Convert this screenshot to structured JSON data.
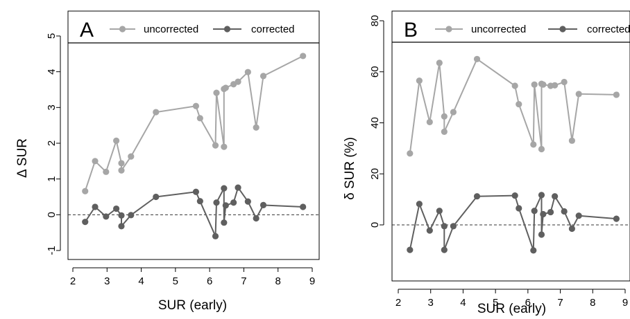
{
  "colors": {
    "uncorrected": "#a6a6a6",
    "corrected": "#5f5f5f",
    "axis": "#000000",
    "zero_line": "#333333"
  },
  "chart_data": [
    {
      "type": "line",
      "panel_label": "A",
      "xlabel": "SUR (early)",
      "ylabel": "Δ SUR",
      "xlim": [
        2,
        9
      ],
      "ylim": [
        -1,
        5
      ],
      "x_ticks": [
        2,
        3,
        4,
        5,
        6,
        7,
        8,
        9
      ],
      "y_ticks": [
        -1,
        0,
        1,
        2,
        3,
        4,
        5
      ],
      "zero_line": 0,
      "legend_position": "top",
      "series": [
        {
          "name": "uncorrected",
          "color": "#a6a6a6",
          "points": [
            [
              2.36,
              0.66
            ],
            [
              2.65,
              1.5
            ],
            [
              2.97,
              1.2
            ],
            [
              3.27,
              2.07
            ],
            [
              3.42,
              1.44
            ],
            [
              3.42,
              1.24
            ],
            [
              3.7,
              1.63
            ],
            [
              4.43,
              2.87
            ],
            [
              5.6,
              3.04
            ],
            [
              5.72,
              2.7
            ],
            [
              6.17,
              1.94
            ],
            [
              6.2,
              3.41
            ],
            [
              6.42,
              1.9
            ],
            [
              6.42,
              3.52
            ],
            [
              6.47,
              3.55
            ],
            [
              6.7,
              3.65
            ],
            [
              6.83,
              3.72
            ],
            [
              7.12,
              3.99
            ],
            [
              7.36,
              2.44
            ],
            [
              7.57,
              3.88
            ],
            [
              8.73,
              4.44
            ]
          ]
        },
        {
          "name": "corrected",
          "color": "#5f5f5f",
          "points": [
            [
              2.36,
              -0.2
            ],
            [
              2.65,
              0.22
            ],
            [
              2.97,
              -0.05
            ],
            [
              3.27,
              0.17
            ],
            [
              3.42,
              -0.02
            ],
            [
              3.42,
              -0.32
            ],
            [
              3.7,
              -0.01
            ],
            [
              4.43,
              0.5
            ],
            [
              5.6,
              0.64
            ],
            [
              5.72,
              0.38
            ],
            [
              6.17,
              -0.6
            ],
            [
              6.2,
              0.34
            ],
            [
              6.42,
              0.74
            ],
            [
              6.42,
              -0.22
            ],
            [
              6.47,
              0.26
            ],
            [
              6.7,
              0.34
            ],
            [
              6.83,
              0.76
            ],
            [
              7.12,
              0.37
            ],
            [
              7.36,
              -0.1
            ],
            [
              7.57,
              0.27
            ],
            [
              8.73,
              0.22
            ]
          ]
        }
      ]
    },
    {
      "type": "line",
      "panel_label": "B",
      "xlabel": "SUR (early)",
      "ylabel": "δ SUR (%)",
      "xlim": [
        2,
        9
      ],
      "ylim": [
        -10,
        80
      ],
      "x_ticks": [
        2,
        3,
        4,
        5,
        6,
        7,
        8,
        9
      ],
      "y_ticks": [
        0,
        20,
        40,
        60,
        80
      ],
      "zero_line": 0,
      "legend_position": "top",
      "series": [
        {
          "name": "uncorrected",
          "color": "#a6a6a6",
          "points": [
            [
              2.36,
              28
            ],
            [
              2.65,
              56.5
            ],
            [
              2.97,
              40.3
            ],
            [
              3.27,
              63.5
            ],
            [
              3.42,
              42.5
            ],
            [
              3.42,
              36.5
            ],
            [
              3.7,
              44.2
            ],
            [
              4.43,
              65
            ],
            [
              5.6,
              54.5
            ],
            [
              5.72,
              47.3
            ],
            [
              6.17,
              31.5
            ],
            [
              6.2,
              55
            ],
            [
              6.42,
              29.7
            ],
            [
              6.42,
              55.3
            ],
            [
              6.47,
              55
            ],
            [
              6.7,
              54.5
            ],
            [
              6.83,
              54.7
            ],
            [
              7.12,
              56
            ],
            [
              7.36,
              33
            ],
            [
              7.57,
              51.3
            ],
            [
              8.73,
              51
            ]
          ]
        },
        {
          "name": "corrected",
          "color": "#5f5f5f",
          "points": [
            [
              2.36,
              -9.8
            ],
            [
              2.65,
              8.2
            ],
            [
              2.97,
              -2.2
            ],
            [
              3.27,
              5.5
            ],
            [
              3.42,
              -0.5
            ],
            [
              3.42,
              -9.8
            ],
            [
              3.7,
              -0.5
            ],
            [
              4.43,
              11.2
            ],
            [
              5.6,
              11.5
            ],
            [
              5.72,
              6.5
            ],
            [
              6.17,
              -10
            ],
            [
              6.2,
              5.5
            ],
            [
              6.42,
              11.7
            ],
            [
              6.42,
              -3.8
            ],
            [
              6.47,
              4.2
            ],
            [
              6.7,
              5
            ],
            [
              6.83,
              11.2
            ],
            [
              7.12,
              5.3
            ],
            [
              7.36,
              -1.5
            ],
            [
              7.57,
              3.6
            ],
            [
              8.73,
              2.4
            ]
          ]
        }
      ]
    }
  ]
}
